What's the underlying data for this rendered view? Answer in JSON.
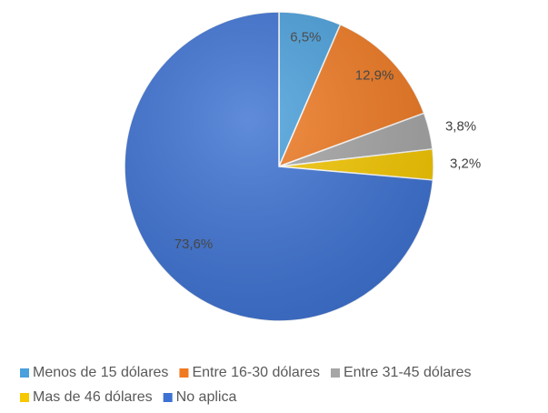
{
  "chart_data": {
    "type": "pie",
    "categories": [
      "Menos de 15 dólares",
      "Entre 16-30 dólares",
      "Entre 31-45 dólares",
      "Mas de 46 dólares",
      "No aplica"
    ],
    "values": [
      6.5,
      12.9,
      3.8,
      3.2,
      73.6
    ],
    "value_labels": [
      "6,5%",
      "12,9%",
      "3,8%",
      "3,2%",
      "73,6%"
    ],
    "colors": [
      "#4aa0dc",
      "#f07a22",
      "#a6a6a6",
      "#f6c800",
      "#3d72d3"
    ],
    "legend": "bottom"
  }
}
